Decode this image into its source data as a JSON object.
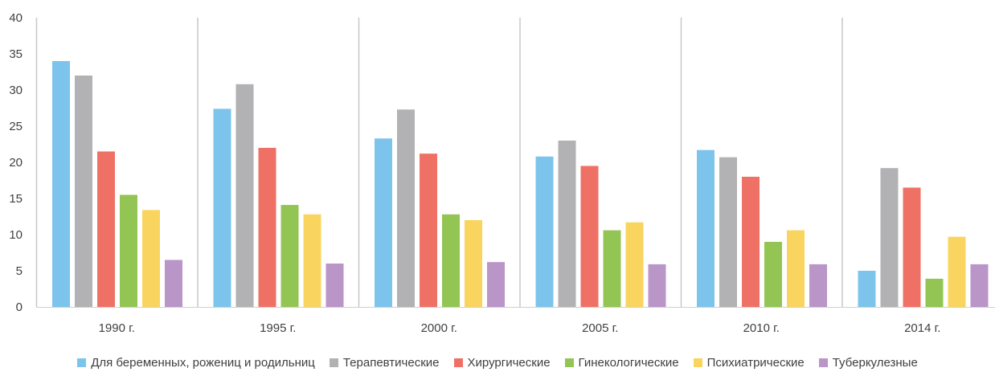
{
  "chart_data": {
    "type": "bar",
    "categories": [
      "1990 г.",
      "1995 г.",
      "2000 г.",
      "2005 г.",
      "2010 г.",
      "2014 г."
    ],
    "series": [
      {
        "name": "Для беременных, рожениц и родильниц",
        "color": "#7dc4ec",
        "values": [
          34.0,
          27.4,
          23.3,
          20.8,
          21.7,
          5.0
        ]
      },
      {
        "name": "Терапевтические",
        "color": "#b2b2b4",
        "values": [
          32.0,
          30.8,
          27.3,
          23.0,
          20.7,
          19.2
        ]
      },
      {
        "name": "Хирургические",
        "color": "#ef7165",
        "values": [
          21.5,
          22.0,
          21.2,
          19.5,
          18.0,
          16.5
        ]
      },
      {
        "name": "Гинекологические",
        "color": "#93c554",
        "values": [
          15.5,
          14.1,
          12.8,
          10.6,
          9.0,
          3.9
        ]
      },
      {
        "name": "Психиатрические",
        "color": "#f9d45f",
        "values": [
          13.4,
          12.8,
          12.0,
          11.7,
          10.6,
          9.7
        ]
      },
      {
        "name": "Туберкулезные",
        "color": "#b995c8",
        "values": [
          6.5,
          6.0,
          6.2,
          5.9,
          5.9,
          5.9
        ]
      }
    ],
    "ylim": [
      0,
      40
    ],
    "yticks": [
      0,
      5,
      10,
      15,
      20,
      25,
      30,
      35,
      40
    ],
    "grid": false,
    "group_separators": true,
    "legend_position": "bottom",
    "xlabel": "",
    "ylabel": "",
    "title": ""
  }
}
